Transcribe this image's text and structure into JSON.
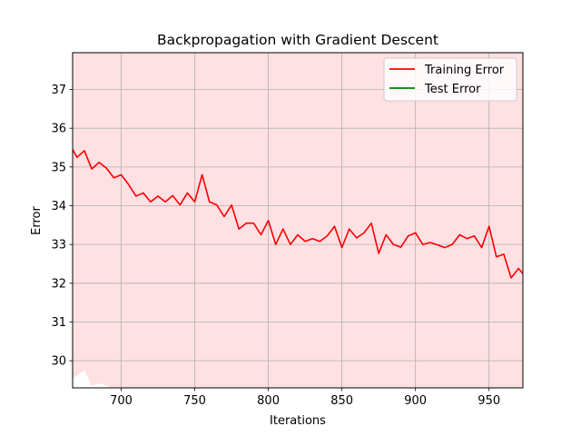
{
  "chart_data": {
    "type": "line",
    "title": "Backpropagation with Gradient Descent",
    "xlabel": "Iterations",
    "ylabel": "Error",
    "xlim": [
      667,
      973
    ],
    "ylim": [
      29.3,
      37.95
    ],
    "xticks": [
      700,
      750,
      800,
      850,
      900,
      950
    ],
    "yticks": [
      30,
      31,
      32,
      33,
      34,
      35,
      36,
      37
    ],
    "grid": true,
    "legend_position": "top-right",
    "background_fill_color": "#ffe0e3",
    "series": [
      {
        "name": "Training Error",
        "color": "#ff0000",
        "x": [
          667,
          670,
          675,
          680,
          685,
          690,
          695,
          700,
          705,
          710,
          715,
          720,
          725,
          730,
          735,
          740,
          745,
          750,
          755,
          760,
          765,
          770,
          775,
          780,
          785,
          790,
          795,
          800,
          805,
          810,
          815,
          820,
          825,
          830,
          835,
          840,
          845,
          850,
          855,
          860,
          865,
          870,
          875,
          880,
          885,
          890,
          895,
          900,
          905,
          910,
          915,
          920,
          925,
          930,
          935,
          940,
          945,
          950,
          955,
          960,
          965,
          970,
          973
        ],
        "y": [
          35.45,
          35.25,
          35.42,
          34.95,
          35.12,
          34.97,
          34.72,
          34.8,
          34.55,
          34.25,
          34.33,
          34.1,
          34.25,
          34.1,
          34.26,
          34.02,
          34.33,
          34.1,
          34.8,
          34.1,
          34.02,
          33.72,
          34.02,
          33.4,
          33.55,
          33.55,
          33.25,
          33.62,
          33.0,
          33.4,
          33.0,
          33.25,
          33.08,
          33.15,
          33.08,
          33.22,
          33.47,
          32.92,
          33.4,
          33.17,
          33.3,
          33.55,
          32.77,
          33.25,
          33.0,
          32.93,
          33.22,
          33.3,
          33.0,
          33.05,
          32.99,
          32.92,
          33.0,
          33.25,
          33.15,
          33.22,
          32.92,
          33.47,
          32.68,
          32.75,
          32.14,
          32.38,
          32.25
        ]
      },
      {
        "name": "Test Error",
        "color": "#008000",
        "x": [],
        "y": []
      }
    ],
    "fill_lower_boundary": {
      "x": [
        667,
        670,
        675,
        680,
        685,
        690,
        695,
        973
      ],
      "y": [
        29.55,
        29.62,
        29.75,
        29.35,
        29.42,
        29.35,
        29.28,
        29.28
      ]
    }
  }
}
